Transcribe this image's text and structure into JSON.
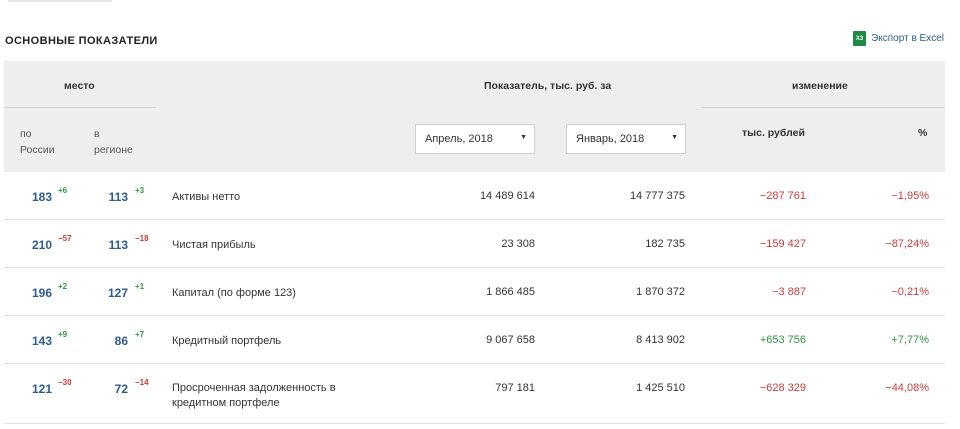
{
  "section_title": "ОСНОВНЫЕ ПОКАЗАТЕЛИ",
  "export": {
    "icon": "excel-icon",
    "icon_text": "X3",
    "label": "Экспорт в Excel"
  },
  "header": {
    "place": "место",
    "indicator": "Показатель, тыс. руб. за",
    "change": "изменение",
    "by_russia": "по\nРоссии",
    "by_region": "в\nрегионе",
    "period1": "Апрель, 2018",
    "period2": "Январь, 2018",
    "change_rub": "тыс. рублей",
    "change_pct": "%"
  },
  "rows": [
    {
      "rank_russia": "183",
      "delta_russia": "+6",
      "rank_region": "113",
      "delta_region": "+3",
      "name": "Активы нетто",
      "value1": "14 489 614",
      "value2": "14 777 375",
      "change_abs": "−287 761",
      "change_pct": "−1,95%"
    },
    {
      "rank_russia": "210",
      "delta_russia": "−57",
      "rank_region": "113",
      "delta_region": "−18",
      "name": "Чистая прибыль",
      "value1": "23 308",
      "value2": "182 735",
      "change_abs": "−159 427",
      "change_pct": "−87,24%"
    },
    {
      "rank_russia": "196",
      "delta_russia": "+2",
      "rank_region": "127",
      "delta_region": "+1",
      "name": "Капитал (по форме 123)",
      "value1": "1 866 485",
      "value2": "1 870 372",
      "change_abs": "−3 887",
      "change_pct": "−0,21%"
    },
    {
      "rank_russia": "143",
      "delta_russia": "+9",
      "rank_region": "86",
      "delta_region": "+7",
      "name": "Кредитный портфель",
      "value1": "9 067 658",
      "value2": "8 413 902",
      "change_abs": "+653 756",
      "change_pct": "+7,77%"
    },
    {
      "rank_russia": "121",
      "delta_russia": "−30",
      "rank_region": "72",
      "delta_region": "−14",
      "name": "Просроченная задолженность в кредитном портфеле",
      "value1": "797 181",
      "value2": "1 425 510",
      "change_abs": "−628 329",
      "change_pct": "−44,08%"
    }
  ],
  "colors": {
    "positive": "#2a9b3e",
    "negative": "#d23a3a",
    "rank": "#2d5b8a",
    "header_bg": "#eeeeee"
  }
}
